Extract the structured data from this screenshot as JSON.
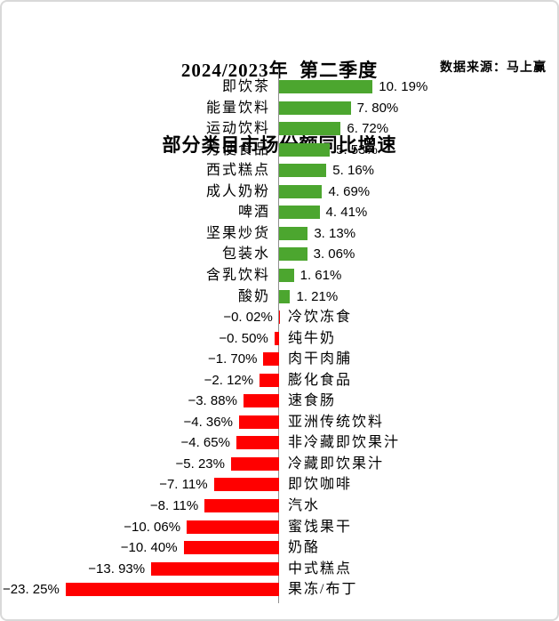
{
  "chart_data": {
    "type": "bar",
    "orientation": "horizontal",
    "title_line1": "2024/2023年  第二季度",
    "title_line2": "部分类目市场份额同比增速",
    "source_note": "数据来源：马上赢",
    "unit": "%",
    "xlim": [
      -25,
      12
    ],
    "grid": false,
    "legend": false,
    "bar_colors": {
      "positive": "#4CA62F",
      "negative": "#FF0000"
    },
    "axis_color": "#909090",
    "categories": [
      "即饮茶",
      "能量饮料",
      "运动饮料",
      "方便食品",
      "西式糕点",
      "成人奶粉",
      "啤酒",
      "坚果炒货",
      "包装水",
      "含乳饮料",
      "酸奶",
      "冷饮冻食",
      "纯牛奶",
      "肉干肉脯",
      "膨化食品",
      "速食肠",
      "亚洲传统饮料",
      "非冷藏即饮果汁",
      "冷藏即饮果汁",
      "即饮咖啡",
      "汽水",
      "蜜饯果干",
      "奶酪",
      "中式糕点",
      "果冻/布丁"
    ],
    "values": [
      10.19,
      7.8,
      6.72,
      5.53,
      5.16,
      4.69,
      4.41,
      3.13,
      3.06,
      1.61,
      1.21,
      -0.02,
      -0.5,
      -1.7,
      -2.12,
      -3.88,
      -4.36,
      -4.65,
      -5.23,
      -7.11,
      -8.11,
      -10.06,
      -10.4,
      -13.93,
      -23.25
    ],
    "value_labels": [
      "10. 19%",
      "7. 80%",
      "6. 72%",
      "5. 53%",
      "5. 16%",
      "4. 69%",
      "4. 41%",
      "3. 13%",
      "3. 06%",
      "1. 61%",
      "1. 21%",
      "−0. 02%",
      "−0. 50%",
      "−1. 70%",
      "−2. 12%",
      "−3. 88%",
      "−4. 36%",
      "−4. 65%",
      "−5. 23%",
      "−7. 11%",
      "−8. 11%",
      "−10. 06%",
      "−10. 40%",
      "−13. 93%",
      "−23. 25%"
    ]
  }
}
